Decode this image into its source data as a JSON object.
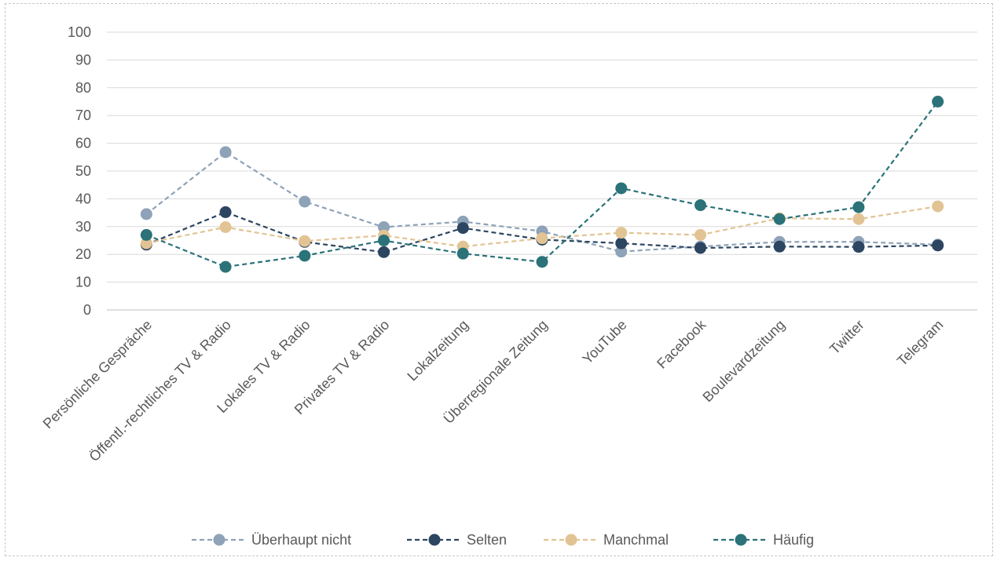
{
  "chart_data": {
    "type": "line",
    "title": "",
    "xlabel": "",
    "ylabel": "",
    "ylim": [
      0,
      100
    ],
    "yticks": [
      0,
      10,
      20,
      30,
      40,
      50,
      60,
      70,
      80,
      90,
      100
    ],
    "grid": "horizontal",
    "legend_position": "bottom",
    "categories": [
      "Persönliche Gespräche",
      "Öffentl.-rechtliches TV & Radio",
      "Lokales TV & Radio",
      "Privates TV & Radio",
      "Lokalzeitung",
      "Überregionale Zeitung",
      "YouTube",
      "Facebook",
      "Boulevardzeitung",
      "Twitter",
      "Telegram"
    ],
    "series": [
      {
        "name": "Überhaupt nicht",
        "color": "#8ea2b8",
        "values": [
          34.5,
          56.8,
          39.0,
          29.8,
          31.8,
          28.3,
          21.0,
          22.8,
          24.5,
          24.5,
          23.5
        ]
      },
      {
        "name": "Selten",
        "color": "#2c4561",
        "values": [
          23.5,
          35.2,
          24.5,
          20.8,
          29.5,
          25.3,
          24.0,
          22.3,
          22.8,
          22.7,
          23.2
        ]
      },
      {
        "name": "Manchmal",
        "color": "#e2c393",
        "values": [
          24.0,
          29.8,
          24.8,
          26.8,
          22.8,
          25.8,
          27.8,
          27.0,
          33.0,
          32.7,
          37.3
        ]
      },
      {
        "name": "Häufig",
        "color": "#2b7279",
        "values": [
          27.0,
          15.5,
          19.5,
          25.0,
          20.3,
          17.3,
          43.8,
          37.7,
          32.7,
          37.0,
          75.0
        ]
      }
    ]
  }
}
